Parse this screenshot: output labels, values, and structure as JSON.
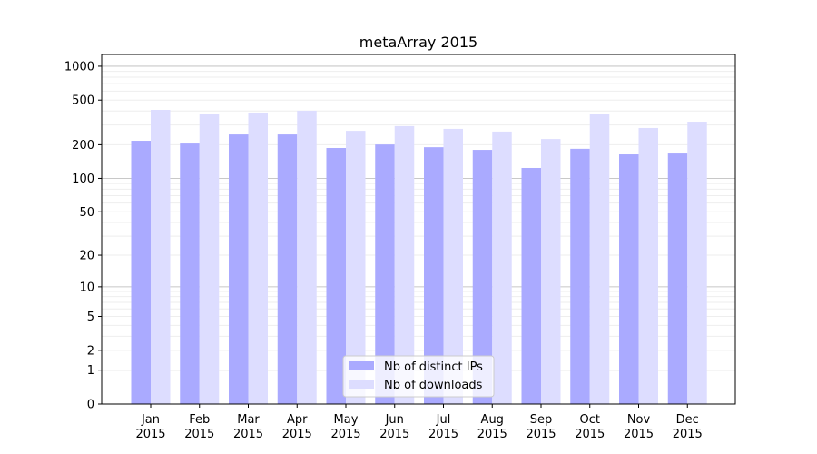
{
  "chart_data": {
    "type": "bar",
    "title": "metaArray 2015",
    "xlabel": "",
    "ylabel": "",
    "yscale": "log10(1+y)",
    "ylim": [
      0,
      1300
    ],
    "yticks": [
      0,
      1,
      2,
      5,
      10,
      20,
      50,
      100,
      200,
      500,
      1000
    ],
    "grid": true,
    "legend_position": "bottom-center",
    "categories": [
      "Jan\n2015",
      "Feb\n2015",
      "Mar\n2015",
      "Apr\n2015",
      "May\n2015",
      "Jun\n2015",
      "Jul\n2015",
      "Aug\n2015",
      "Sep\n2015",
      "Oct\n2015",
      "Nov\n2015",
      "Dec\n2015"
    ],
    "series": [
      {
        "name": "Nb of distinct IPs",
        "color": "#aaaaff",
        "values": [
          217,
          205,
          247,
          247,
          187,
          201,
          190,
          180,
          124,
          184,
          164,
          167
        ]
      },
      {
        "name": "Nb of downloads",
        "color": "#ddddff",
        "values": [
          409,
          373,
          387,
          402,
          266,
          293,
          277,
          262,
          225,
          373,
          282,
          321
        ]
      }
    ]
  }
}
